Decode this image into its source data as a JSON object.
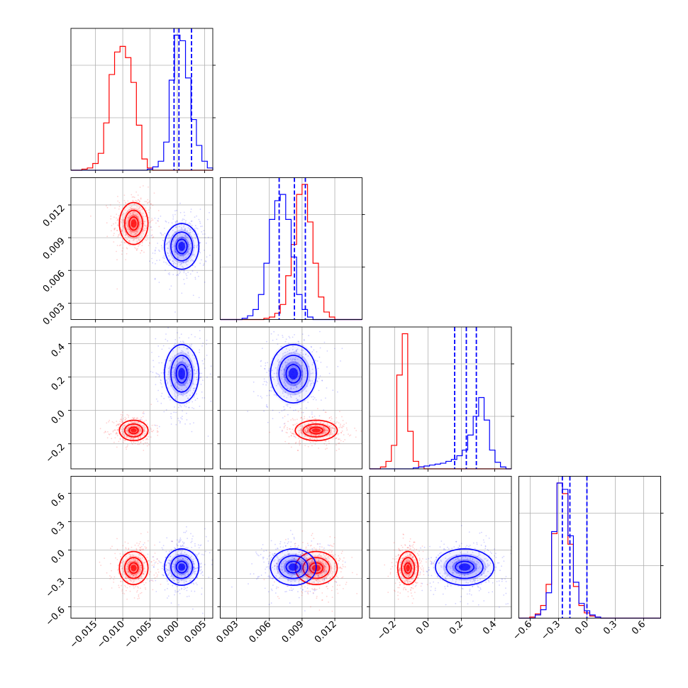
{
  "colors": {
    "red": "#ff0000",
    "blue": "#0000ff",
    "grid": "#b0b0b0"
  },
  "chart_data": {
    "type": "corner",
    "title": "",
    "grid": true,
    "dimensions": [
      {
        "range": [
          -0.0195,
          0.0065
        ],
        "ticks": [
          "-0.015",
          "-0.010",
          "-0.005",
          "0.000",
          "0.005"
        ],
        "tick_values": [
          -0.015,
          -0.01,
          -0.005,
          0.0,
          0.005
        ]
      },
      {
        "range": [
          0.0015,
          0.0145
        ],
        "ticks": [
          "0.003",
          "0.006",
          "0.009",
          "0.012"
        ],
        "tick_values": [
          0.003,
          0.006,
          0.009,
          0.012
        ]
      },
      {
        "range": [
          -0.35,
          0.5
        ],
        "ticks": [
          "-0.2",
          "0.0",
          "0.2",
          "0.4"
        ],
        "tick_values": [
          -0.2,
          0.0,
          0.2,
          0.4
        ]
      },
      {
        "range": [
          -0.72,
          0.78
        ],
        "ticks": [
          "-0.6",
          "-0.3",
          "0.0",
          "0.3",
          "0.6"
        ],
        "tick_values": [
          -0.6,
          -0.3,
          0.0,
          0.3,
          0.6
        ]
      }
    ],
    "series": [
      {
        "color": "#ff0000",
        "mean": [
          -0.008,
          0.0103,
          -0.12,
          -0.19
        ],
        "std": [
          0.0015,
          0.0011,
          0.035,
          0.1
        ]
      },
      {
        "color": "#0000ff",
        "mean": [
          0.0008,
          0.0082,
          0.22,
          -0.18
        ],
        "std": [
          0.0018,
          0.0012,
          0.1,
          0.11
        ],
        "quantiles": [
          [
            -0.0006,
            0.0003,
            0.0026
          ],
          [
            0.0069,
            0.0083,
            0.0093
          ],
          [
            0.16,
            0.23,
            0.29
          ],
          [
            -0.26,
            -0.18,
            0.0
          ]
        ]
      }
    ],
    "histograms": [
      {
        "bins": [
          -0.0195,
          0.0065
        ],
        "red": [
          0,
          0,
          1,
          2,
          6,
          15,
          42,
          85,
          105,
          110,
          100,
          78,
          40,
          10,
          2,
          0,
          0,
          0,
          0,
          0,
          0,
          0,
          0,
          0,
          0,
          0
        ],
        "blue": [
          0,
          0,
          0,
          0,
          0,
          0,
          0,
          0,
          0,
          0,
          0,
          0,
          0,
          0,
          1,
          3,
          8,
          25,
          80,
          120,
          115,
          82,
          45,
          22,
          8,
          2
        ]
      },
      {
        "bins": [
          0.0015,
          0.0145
        ],
        "red": [
          0,
          0,
          0,
          0,
          0,
          0,
          0,
          0,
          1,
          2,
          5,
          12,
          35,
          60,
          100,
          108,
          78,
          45,
          18,
          6,
          2,
          0,
          0,
          0,
          0,
          0
        ],
        "blue": [
          0,
          0,
          0,
          0,
          1,
          3,
          8,
          20,
          45,
          80,
          95,
          100,
          80,
          50,
          20,
          8,
          2,
          0,
          0,
          0,
          0,
          0,
          0,
          0,
          0,
          0
        ]
      },
      {
        "bins": [
          -0.35,
          0.5
        ],
        "red": [
          0,
          0,
          2,
          8,
          25,
          100,
          144,
          40,
          8,
          2,
          0,
          0,
          0,
          0,
          0,
          0,
          0,
          0,
          0,
          0,
          0,
          0,
          0,
          0,
          0,
          0
        ],
        "blue": [
          0,
          0,
          0,
          0,
          0,
          0,
          0,
          0,
          1,
          2,
          3,
          4,
          5,
          6,
          8,
          10,
          14,
          20,
          36,
          56,
          76,
          52,
          20,
          7,
          2,
          0
        ]
      },
      {
        "bins": [
          -0.72,
          0.78
        ],
        "red": [
          0,
          0,
          1,
          4,
          12,
          32,
          80,
          128,
          118,
          70,
          30,
          12,
          5,
          2,
          1,
          0,
          0,
          0,
          0,
          0,
          0,
          0,
          0,
          0,
          0,
          0
        ],
        "blue": [
          0,
          0,
          0,
          3,
          8,
          24,
          82,
          128,
          122,
          78,
          34,
          14,
          7,
          3,
          1,
          0,
          0,
          0,
          0,
          0,
          0,
          0,
          0,
          0,
          0,
          0
        ]
      }
    ]
  }
}
